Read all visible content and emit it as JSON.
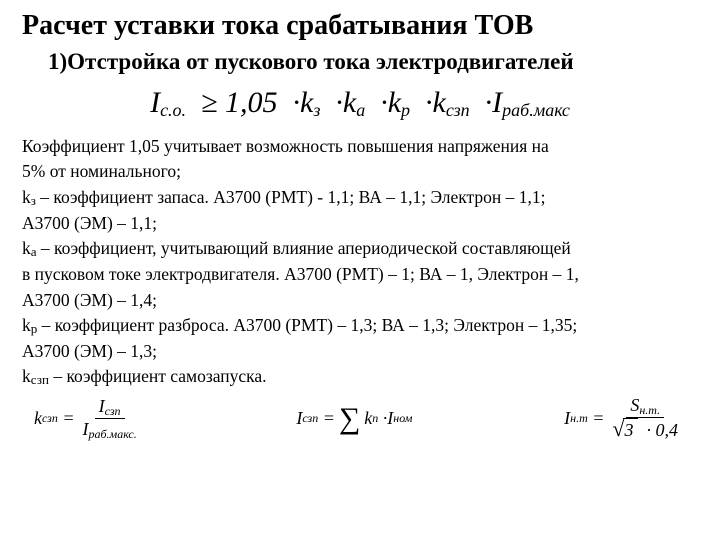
{
  "title": "Расчет уставки тока срабатывания ТОВ",
  "subtitle": "1)Отстройка от пускового тока электродвигателей",
  "main_equation": {
    "lhs_I": "I",
    "lhs_sub": "с.о.",
    "ge": "≥",
    "coef": "1,05",
    "k1": "k",
    "k1s": "з",
    "k2": "k",
    "k2s": "а",
    "k3": "k",
    "k3s": "р",
    "k4": "k",
    "k4s": "сзп",
    "rhs_I": "I",
    "rhs_sub": "раб.макс",
    "dot": "·"
  },
  "body": {
    "p1a": " Коэффициент 1,05 учитывает возможность повышения напряжения на",
    "p1b": "5% от номинального;",
    "p2a_pre": "k",
    "p2a_sub": "з",
    "p2a_post": " – коэффициент запаса. А3700 (РМТ) - 1,1; ВА – 1,1; Электрон – 1,1;",
    "p2b": "А3700 (ЭМ) – 1,1;",
    "p3a_pre": "k",
    "p3a_sub": "а",
    "p3a_post": " – коэффициент, учитывающий влияние апериодической составляющей",
    "p3b": "в пусковом токе электродвигателя. А3700 (РМТ) – 1; ВА – 1, Электрон – 1,",
    "p3c": "А3700 (ЭМ) – 1,4;",
    "p4a_pre": "k",
    "p4a_sub": "р",
    "p4a_post": " – коэффициент разброса. А3700 (РМТ) – 1,3; ВА – 1,3; Электрон – 1,35;",
    "p4b": "А3700 (ЭМ) – 1,3;",
    "p5_pre": "k",
    "p5_sub": "сзп",
    "p5_post": " – коэффициент самозапуска."
  },
  "bottom": {
    "eq1": {
      "k": "k",
      "ks": "сзп",
      "eq": "=",
      "num_I": "I",
      "num_s": "сзп",
      "den_I": "I",
      "den_s": "раб.макс."
    },
    "eq2": {
      "I": "I",
      "Is": "сзп",
      "eq": "=",
      "sigma": "∑",
      "k": "k",
      "ksub": "п",
      "dot": "·",
      "In": "I",
      "Ins": "ном"
    },
    "eq3": {
      "I": "I",
      "Is": "н.т",
      "eq": "=",
      "num_S": "S",
      "num_s": "н.т.",
      "rad": "√",
      "arg": "3",
      "dot": "·",
      "val": "0,4"
    }
  },
  "style": {
    "background": "#ffffff",
    "text_color": "#000000",
    "title_fontsize": 28,
    "sub_fontsize": 23,
    "eq_fontsize": 30,
    "body_fontsize": 17.5,
    "bottom_eq_fontsize": 18
  }
}
